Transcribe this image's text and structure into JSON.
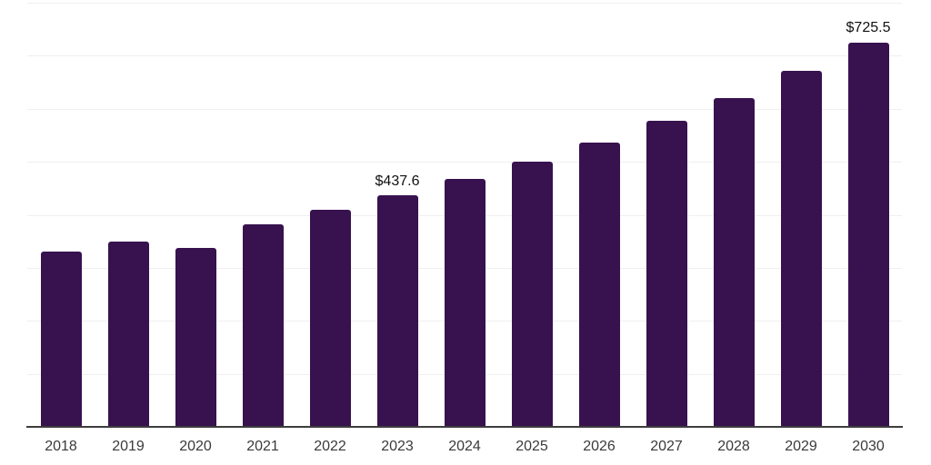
{
  "chart_data": {
    "type": "bar",
    "title": "",
    "xlabel": "",
    "ylabel": "",
    "categories": [
      "2018",
      "2019",
      "2020",
      "2021",
      "2022",
      "2023",
      "2024",
      "2025",
      "2026",
      "2027",
      "2028",
      "2029",
      "2030"
    ],
    "values": [
      330,
      350,
      337,
      382,
      409,
      437.6,
      468,
      500,
      537,
      578,
      620,
      672,
      725.5
    ],
    "point_labels": [
      "",
      "",
      "",
      "",
      "",
      "$437.6",
      "",
      "",
      "",
      "",
      "",
      "",
      "$725.5"
    ],
    "ylim": [
      0,
      800
    ],
    "grid_step": 100,
    "grid": true,
    "legend_position": "none",
    "colors": {
      "bar": "#37124f",
      "gridline": "#efefef",
      "axis_line": "#3d3d3d",
      "tick_label": "#3a3a3a",
      "value_label": "#111111",
      "background": "#ffffff"
    }
  }
}
